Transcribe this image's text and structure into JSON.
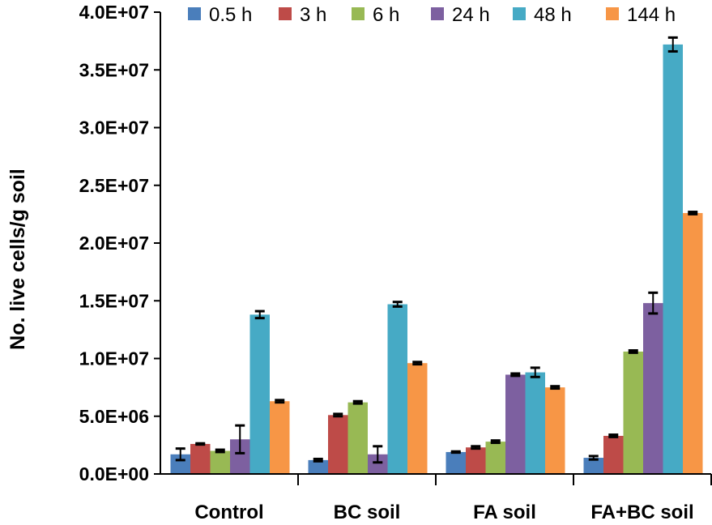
{
  "chart_data": {
    "type": "bar",
    "title": "",
    "xlabel": "",
    "ylabel": "No. live cells/g soil",
    "ylim": [
      0,
      40000000
    ],
    "yticks": [
      0,
      5000000,
      10000000,
      15000000,
      20000000,
      25000000,
      30000000,
      35000000,
      40000000
    ],
    "ytick_labels": [
      "0.0E+00",
      "5.0E+06",
      "1.0E+07",
      "1.5E+07",
      "2.0E+07",
      "2.5E+07",
      "3.0E+07",
      "3.5E+07",
      "4.0E+07"
    ],
    "grid": false,
    "legend_position": "top",
    "categories": [
      "Control",
      "BC soil",
      "FA soil",
      "FA+BC soil"
    ],
    "series": [
      {
        "name": "0.5 h",
        "color": "#4a7ebb",
        "values": [
          1700000,
          1200000,
          1900000,
          1400000
        ],
        "errors": [
          500000,
          100000,
          50000,
          150000
        ]
      },
      {
        "name": "3 h",
        "color": "#be4b48",
        "values": [
          2600000,
          5100000,
          2300000,
          3300000
        ],
        "errors": [
          50000,
          100000,
          100000,
          100000
        ]
      },
      {
        "name": "6 h",
        "color": "#98b954",
        "values": [
          2000000,
          6200000,
          2800000,
          10600000
        ],
        "errors": [
          100000,
          100000,
          100000,
          100000
        ]
      },
      {
        "name": "24 h",
        "color": "#7d60a0",
        "values": [
          3000000,
          1700000,
          8600000,
          14800000
        ],
        "errors": [
          1200000,
          700000,
          100000,
          900000
        ]
      },
      {
        "name": "48 h",
        "color": "#46aac5",
        "values": [
          13800000,
          14700000,
          8800000,
          37200000
        ],
        "errors": [
          300000,
          200000,
          400000,
          600000
        ]
      },
      {
        "name": "144 h",
        "color": "#f79646",
        "values": [
          6300000,
          9600000,
          7500000,
          22600000
        ],
        "errors": [
          100000,
          100000,
          100000,
          100000
        ]
      }
    ]
  }
}
